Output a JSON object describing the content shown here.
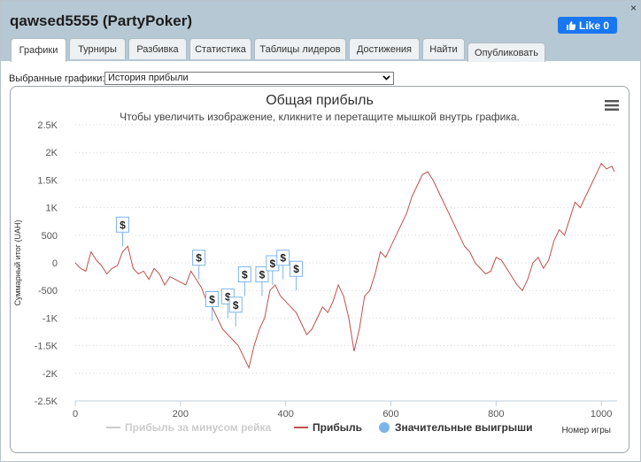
{
  "window": {
    "title": "qawsed5555 (PartyPoker)",
    "close": "×",
    "like_label": "Like 0"
  },
  "tabs": [
    {
      "label": "Графики",
      "active": true
    },
    {
      "label": "Турниры"
    },
    {
      "label": "Разбивка"
    },
    {
      "label": "Статистика"
    },
    {
      "label": "Таблицы лидеров"
    },
    {
      "label": "Достижения"
    },
    {
      "label": "Найти"
    },
    {
      "label": "Опубликовать"
    }
  ],
  "selector": {
    "label": "Выбранные графики:",
    "value": "История прибыли"
  },
  "chart_data": {
    "type": "line",
    "title": "Общая прибыль",
    "subtitle": "Чтобы увеличить изображение, кликните и перетащите мышкой внутрь графика.",
    "ylabel": "Суммарный итог (UAH)",
    "xlabel": "Номер игры",
    "xlim": [
      0,
      1030
    ],
    "ylim": [
      -2500,
      2500
    ],
    "x_ticks": [
      0,
      200,
      400,
      600,
      800,
      1000
    ],
    "y_ticks": [
      2500,
      2000,
      1500,
      1000,
      500,
      0,
      -500,
      -1000,
      -1500,
      -2000,
      -2500
    ],
    "y_tick_labels": [
      "2.5K",
      "2K",
      "1.5K",
      "1K",
      "500",
      "0",
      "-500",
      "-1K",
      "-1.5K",
      "-2K",
      "-2.5K"
    ],
    "grid": true,
    "legend_position": "bottom",
    "series": [
      {
        "name": "Прибыль",
        "color": "#c0504d",
        "x": [
          0,
          10,
          20,
          30,
          40,
          50,
          60,
          70,
          80,
          90,
          100,
          110,
          120,
          130,
          140,
          150,
          160,
          170,
          180,
          190,
          200,
          210,
          220,
          230,
          240,
          250,
          260,
          270,
          280,
          290,
          300,
          310,
          320,
          330,
          340,
          350,
          360,
          370,
          380,
          390,
          400,
          410,
          420,
          430,
          440,
          450,
          460,
          470,
          480,
          490,
          500,
          510,
          520,
          530,
          540,
          550,
          560,
          570,
          580,
          590,
          600,
          610,
          620,
          630,
          640,
          650,
          660,
          670,
          680,
          690,
          700,
          710,
          720,
          730,
          740,
          750,
          760,
          770,
          780,
          790,
          800,
          810,
          820,
          830,
          840,
          850,
          860,
          870,
          880,
          890,
          900,
          910,
          920,
          930,
          940,
          950,
          960,
          970,
          980,
          990,
          1000,
          1010,
          1020,
          1025
        ],
        "y": [
          0,
          -100,
          -150,
          200,
          50,
          -50,
          -200,
          -100,
          -50,
          200,
          300,
          -100,
          -200,
          -150,
          -300,
          -100,
          -200,
          -400,
          -250,
          -300,
          -350,
          -400,
          -150,
          -300,
          -450,
          -700,
          -800,
          -1000,
          -1200,
          -1300,
          -1400,
          -1500,
          -1700,
          -1900,
          -1500,
          -1200,
          -1000,
          -500,
          -400,
          -600,
          -700,
          -800,
          -900,
          -1100,
          -1300,
          -1200,
          -1000,
          -800,
          -900,
          -700,
          -400,
          -600,
          -1000,
          -1600,
          -1200,
          -600,
          -500,
          -200,
          200,
          100,
          300,
          500,
          700,
          900,
          1200,
          1400,
          1600,
          1650,
          1500,
          1300,
          1100,
          900,
          700,
          500,
          300,
          200,
          0,
          -100,
          -200,
          -150,
          100,
          50,
          -100,
          -250,
          -400,
          -500,
          -300,
          0,
          100,
          -100,
          50,
          400,
          600,
          500,
          800,
          1100,
          1000,
          1200,
          1400,
          1600,
          1800,
          1700,
          1750,
          1650
        ]
      },
      {
        "name": "Прибыль за минусом рейка",
        "color": "#cccccc",
        "x": [],
        "y": []
      },
      {
        "name": "Значительные выигрыши",
        "color": "#7cb5ec",
        "x": [
          90,
          235,
          260,
          290,
          305,
          322,
          355,
          375,
          395,
          420
        ],
        "y": [
          300,
          -300,
          -1050,
          -1000,
          -1150,
          -600,
          -600,
          -400,
          -300,
          -500
        ]
      }
    ],
    "legend": [
      "Прибыль за минусом рейка",
      "Прибыль",
      "Значительные выигрыши"
    ],
    "flag_label": "$"
  }
}
